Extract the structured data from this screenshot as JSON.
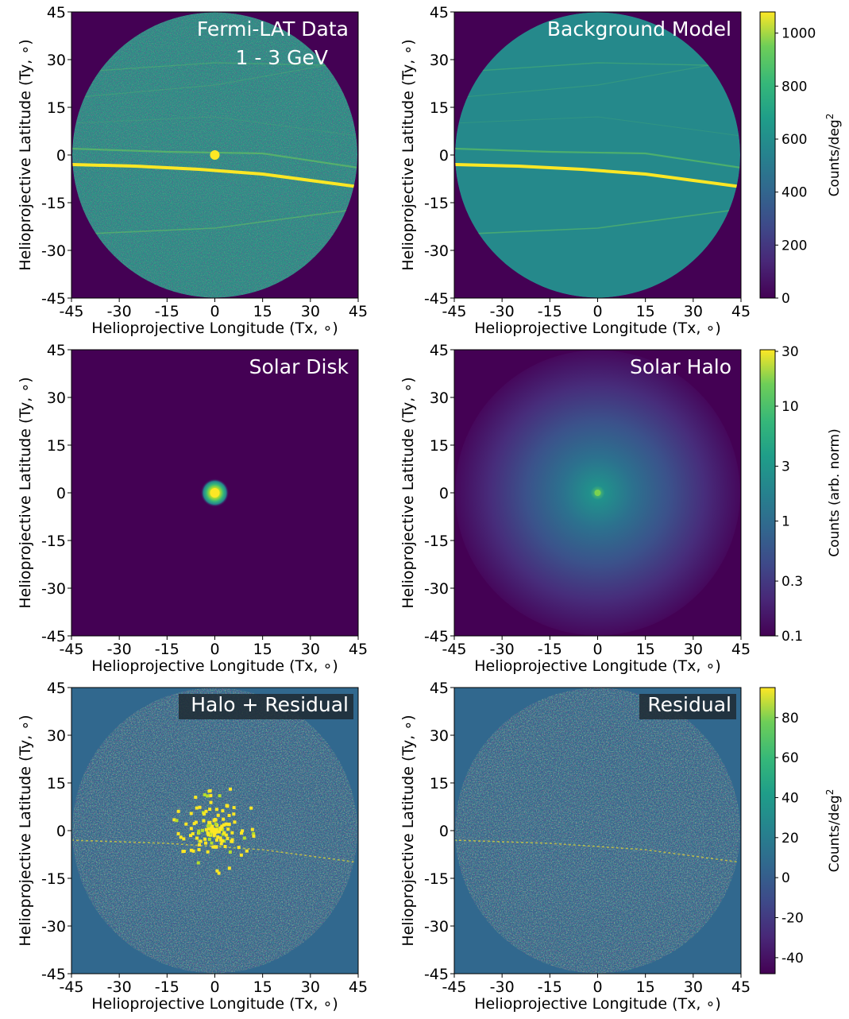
{
  "figure_title": "",
  "colors": {
    "bg": "#440154",
    "teal": "#31688e",
    "yellow": "#fde725",
    "text_white": "#ffffff"
  },
  "chart_data": [
    {
      "type": "heatmap",
      "panel": "fermi-lat-data",
      "title_lines": [
        "Fermi-LAT Data",
        "1 - 3 GeV"
      ],
      "xlabel": "Helioprojective Longitude (Tx, ∘)",
      "ylabel": "Helioprojective Latitude (Ty, ∘)",
      "xlim": [
        -45,
        45
      ],
      "ylim": [
        -45,
        45
      ],
      "xticks": [
        -45,
        -30,
        -15,
        0,
        15,
        30,
        45
      ],
      "yticks": [
        -45,
        -30,
        -15,
        0,
        15,
        30,
        45
      ],
      "colorbar": null
    },
    {
      "type": "heatmap",
      "panel": "background-model",
      "title_lines": [
        "Background Model"
      ],
      "xlabel": "Helioprojective Longitude (Tx, ∘)",
      "ylabel": "Helioprojective Latitude (Ty, ∘)",
      "xlim": [
        -45,
        45
      ],
      "ylim": [
        -45,
        45
      ],
      "xticks": [
        -45,
        -30,
        -15,
        0,
        15,
        30,
        45
      ],
      "yticks": [
        -45,
        -30,
        -15,
        0,
        15,
        30,
        45
      ],
      "colorbar": {
        "label": "Counts/deg",
        "label_superscript": "2",
        "range": [
          0,
          1080
        ],
        "ticks": [
          0,
          200,
          400,
          600,
          800,
          1000
        ],
        "tick_labels": [
          "0",
          "200",
          "400",
          "600",
          "800",
          "1000"
        ]
      }
    },
    {
      "type": "heatmap",
      "panel": "solar-disk",
      "title_lines": [
        "Solar Disk"
      ],
      "xlabel": "Helioprojective Longitude (Tx, ∘)",
      "ylabel": "Helioprojective Latitude (Ty, ∘)",
      "xlim": [
        -45,
        45
      ],
      "ylim": [
        -45,
        45
      ],
      "xticks": [
        -45,
        -30,
        -15,
        0,
        15,
        30,
        45
      ],
      "yticks": [
        -45,
        -30,
        -15,
        0,
        15,
        30,
        45
      ],
      "colorbar": null
    },
    {
      "type": "heatmap",
      "panel": "solar-halo",
      "title_lines": [
        "Solar Halo"
      ],
      "xlabel": "Helioprojective Longitude (Tx, ∘)",
      "ylabel": "Helioprojective Latitude (Ty, ∘)",
      "xlim": [
        -45,
        45
      ],
      "ylim": [
        -45,
        45
      ],
      "xticks": [
        -45,
        -30,
        -15,
        0,
        15,
        30,
        45
      ],
      "yticks": [
        -45,
        -30,
        -15,
        0,
        15,
        30,
        45
      ],
      "colorbar": {
        "label": "Counts (arb. norm)",
        "label_superscript": "",
        "scale": "log",
        "range": [
          0.1,
          31
        ],
        "ticks": [
          0.1,
          0.3,
          1,
          3,
          10,
          30
        ],
        "tick_labels": [
          "0.1",
          "0.3",
          "1",
          "3",
          "10",
          "30"
        ]
      }
    },
    {
      "type": "heatmap",
      "panel": "halo-plus-residual",
      "title_lines": [
        "Halo + Residual"
      ],
      "xlabel": "Helioprojective Longitude (Tx, ∘)",
      "ylabel": "Helioprojective Latitude (Ty, ∘)",
      "xlim": [
        -45,
        45
      ],
      "ylim": [
        -45,
        45
      ],
      "xticks": [
        -45,
        -30,
        -15,
        0,
        15,
        30,
        45
      ],
      "yticks": [
        -45,
        -30,
        -15,
        0,
        15,
        30,
        45
      ],
      "colorbar": null
    },
    {
      "type": "heatmap",
      "panel": "residual",
      "title_lines": [
        "Residual"
      ],
      "xlabel": "Helioprojective Longitude (Tx, ∘)",
      "ylabel": "Helioprojective Latitude (Ty, ∘)",
      "xlim": [
        -45,
        45
      ],
      "ylim": [
        -45,
        45
      ],
      "xticks": [
        -45,
        -30,
        -15,
        0,
        15,
        30,
        45
      ],
      "yticks": [
        -45,
        -30,
        -15,
        0,
        15,
        30,
        45
      ],
      "colorbar": {
        "label": "Counts/deg",
        "label_superscript": "2",
        "range": [
          -48,
          95
        ],
        "ticks": [
          -40,
          -20,
          0,
          20,
          40,
          60,
          80
        ],
        "tick_labels": [
          "-40",
          "-20",
          "0",
          "20",
          "40",
          "60",
          "80"
        ]
      }
    }
  ]
}
